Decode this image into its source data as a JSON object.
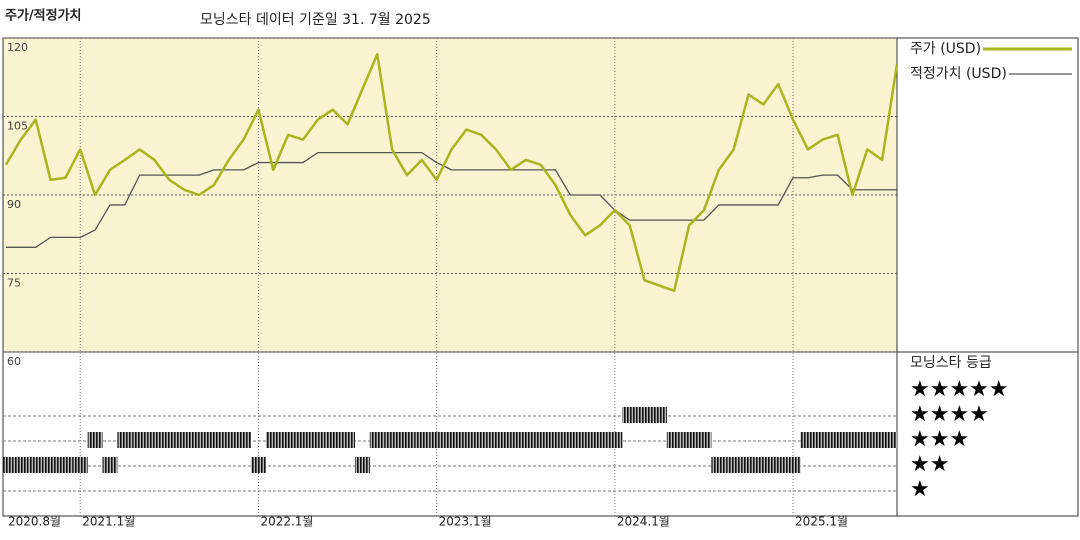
{
  "chart_data": {
    "type": "line",
    "title": "주가/적정가치",
    "subtitle": "모닝스타 데이터 기준일 31. 7월 2025",
    "categories": [
      "2020.8월",
      null,
      null,
      null,
      null,
      "2021.1월",
      null,
      null,
      null,
      null,
      null,
      null,
      null,
      null,
      null,
      null,
      null,
      "2022.1월",
      null,
      null,
      null,
      null,
      null,
      null,
      null,
      null,
      null,
      null,
      null,
      "2023.1월",
      null,
      null,
      null,
      null,
      null,
      null,
      null,
      null,
      null,
      null,
      null,
      "2024.1월",
      null,
      null,
      null,
      null,
      null,
      null,
      null,
      null,
      null,
      null,
      null,
      "2025.1월",
      null,
      null,
      null,
      null,
      null,
      null,
      null
    ],
    "series": [
      {
        "name": "주가 (USD)",
        "color": "#aab41e",
        "values": [
          95.8,
          100.6,
          104.4,
          92.9,
          93.3,
          98.7,
          90,
          94.8,
          96.7,
          98.7,
          96.7,
          92.9,
          91,
          90,
          91.9,
          96.7,
          100.6,
          106.3,
          94.8,
          101.5,
          100.6,
          104.4,
          106.3,
          103.5,
          110.2,
          116.9,
          98.7,
          93.8,
          96.7,
          92.9,
          98.7,
          102.5,
          101.5,
          98.7,
          94.8,
          96.7,
          95.8,
          91.9,
          86.2,
          82.3,
          84.2,
          87.1,
          84.2,
          73.7,
          72.7,
          71.7,
          84.2,
          87.1,
          94.8,
          98.7,
          109.2,
          107.3,
          111.2,
          104.4,
          98.7,
          100.6,
          101.5,
          90,
          98.7,
          96.7,
          115
        ]
      },
      {
        "name": "적정가치 (USD)",
        "color": "#555555",
        "values": [
          80,
          80,
          80,
          81.9,
          81.9,
          81.9,
          83.3,
          88.1,
          88.1,
          93.8,
          93.8,
          93.8,
          93.8,
          93.8,
          94.8,
          94.8,
          94.8,
          96.2,
          96.2,
          96.2,
          96.2,
          98.1,
          98.1,
          98.1,
          98.1,
          98.1,
          98.1,
          98.1,
          98.1,
          96.2,
          94.8,
          94.8,
          94.8,
          94.8,
          94.8,
          94.8,
          94.8,
          94.8,
          90,
          90,
          90,
          87.1,
          85.2,
          85.2,
          85.2,
          85.2,
          85.2,
          85.2,
          88.1,
          88.1,
          88.1,
          88.1,
          88.1,
          93.3,
          93.3,
          93.8,
          93.8,
          91,
          91,
          91,
          91
        ]
      }
    ],
    "ylim": [
      60,
      120
    ],
    "yticks": [
      60,
      75,
      90,
      105,
      120
    ],
    "grid": true,
    "rating_title": "모닝스타 등급",
    "rating_labels": [
      "★",
      "★★",
      "★★★",
      "★★★★",
      "★★★★★"
    ],
    "ratings": [
      2,
      2,
      2,
      2,
      2,
      2,
      3,
      2,
      3,
      3,
      3,
      3,
      3,
      3,
      3,
      3,
      3,
      2,
      3,
      3,
      3,
      3,
      3,
      3,
      2,
      3,
      3,
      3,
      3,
      3,
      3,
      3,
      3,
      3,
      3,
      3,
      3,
      3,
      3,
      3,
      3,
      3,
      4,
      4,
      4,
      3,
      3,
      3,
      2,
      2,
      2,
      2,
      2,
      2,
      3,
      3,
      3,
      3,
      3,
      3,
      3
    ]
  }
}
